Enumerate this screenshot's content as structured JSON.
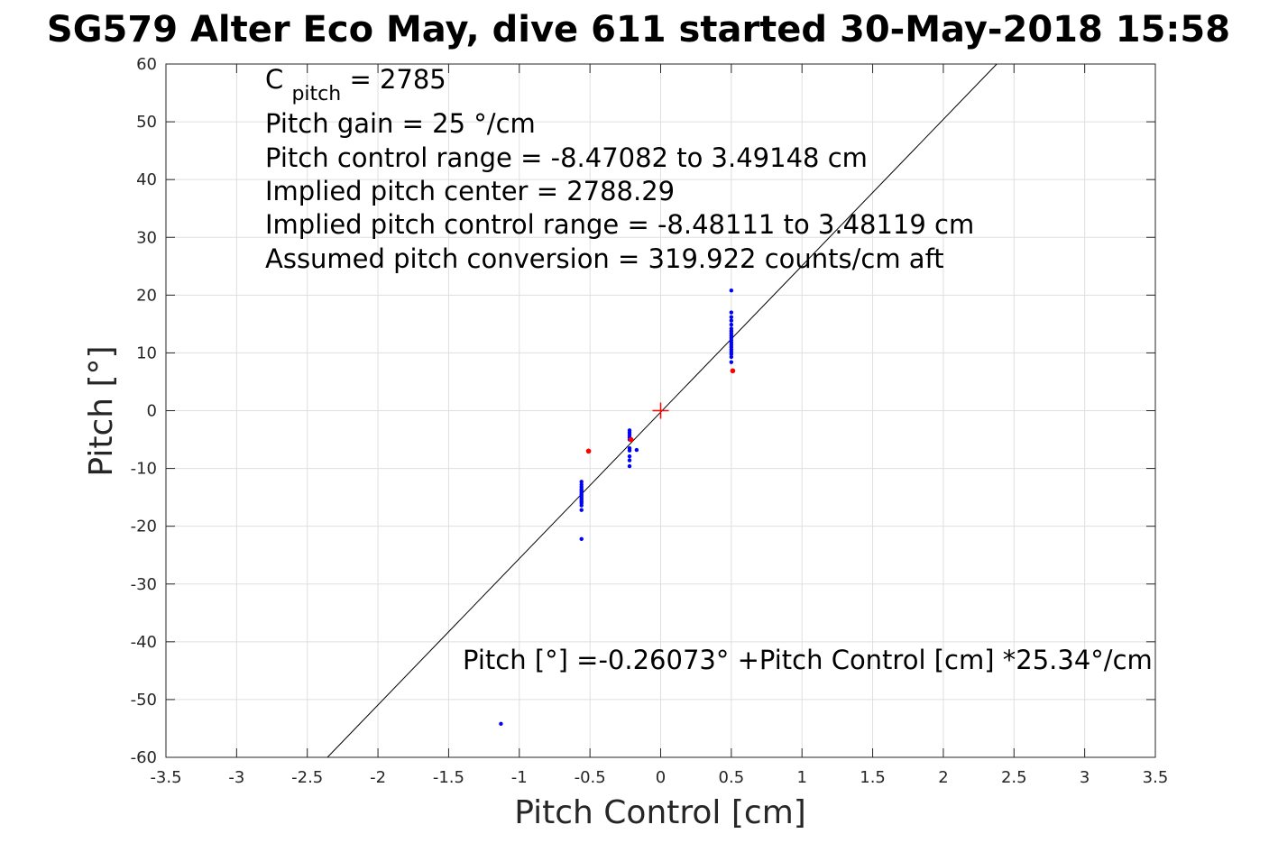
{
  "chart_data": {
    "type": "scatter",
    "title": "SG579 Alter Eco May, dive 611 started 30-May-2018 15:58",
    "xlabel": "Pitch Control [cm]",
    "ylabel": "Pitch [°]",
    "xlim": [
      -3.5,
      3.5
    ],
    "ylim": [
      -60,
      60
    ],
    "xticks": [
      -3.5,
      -3,
      -2.5,
      -2,
      -1.5,
      -1,
      -0.5,
      0,
      0.5,
      1,
      1.5,
      2,
      2.5,
      3,
      3.5
    ],
    "xtick_labels": [
      "-3.5",
      "-3",
      "-2.5",
      "-2",
      "-1.5",
      "-1",
      "-0.5",
      "0",
      "0.5",
      "1",
      "1.5",
      "2",
      "2.5",
      "3",
      "3.5"
    ],
    "yticks": [
      -60,
      -50,
      -40,
      -30,
      -20,
      -10,
      0,
      10,
      20,
      30,
      40,
      50,
      60
    ],
    "ytick_labels": [
      "-60",
      "-50",
      "-40",
      "-30",
      "-20",
      "-10",
      "0",
      "10",
      "20",
      "30",
      "40",
      "50",
      "60"
    ],
    "grid": true,
    "annotations": {
      "c_pitch_symbol": "C",
      "c_pitch_subscript": "pitch",
      "c_pitch_value": " = 2785",
      "lines": [
        "Pitch gain = 25 °/cm",
        "Pitch control range = -8.47082 to 3.49148 cm",
        "Implied pitch center = 2788.29",
        "Implied pitch control range = -8.48111 to 3.48119 cm",
        "Assumed pitch conversion = 319.922 counts/cm aft"
      ],
      "fit_equation": "Pitch [°] =-0.26073° +Pitch Control [cm] *25.34°/cm"
    },
    "fit_line": {
      "intercept": -0.26073,
      "slope": 25.34,
      "color": "#000000"
    },
    "center_marker": {
      "x": 0,
      "y": 0,
      "color": "#ff0000"
    },
    "series": [
      {
        "color": "#0000ff",
        "points": [
          [
            -0.56,
            -12.3
          ],
          [
            -0.56,
            -12.8
          ],
          [
            -0.56,
            -13.2
          ],
          [
            -0.56,
            -13.6
          ],
          [
            -0.56,
            -13.9
          ],
          [
            -0.56,
            -14.2
          ],
          [
            -0.56,
            -14.5
          ],
          [
            -0.56,
            -14.8
          ],
          [
            -0.56,
            -15.1
          ],
          [
            -0.56,
            -15.4
          ],
          [
            -0.56,
            -15.7
          ],
          [
            -0.56,
            -16.0
          ],
          [
            -0.56,
            -16.4
          ],
          [
            -0.56,
            -17.2
          ],
          [
            -0.56,
            -22.2
          ],
          [
            -0.22,
            -3.4
          ],
          [
            -0.22,
            -3.8
          ],
          [
            -0.22,
            -4.2
          ],
          [
            -0.22,
            -4.6
          ],
          [
            -0.22,
            -5.0
          ],
          [
            -0.22,
            -6.5
          ],
          [
            -0.22,
            -6.9
          ],
          [
            -0.22,
            -7.9
          ],
          [
            -0.22,
            -8.6
          ],
          [
            -0.22,
            -9.6
          ],
          [
            -0.17,
            -6.8
          ],
          [
            0.5,
            20.8
          ],
          [
            0.5,
            17.0
          ],
          [
            0.5,
            16.2
          ],
          [
            0.5,
            15.6
          ],
          [
            0.5,
            14.9
          ],
          [
            0.5,
            14.2
          ],
          [
            0.5,
            13.8
          ],
          [
            0.5,
            13.4
          ],
          [
            0.5,
            13.0
          ],
          [
            0.5,
            12.6
          ],
          [
            0.5,
            12.2
          ],
          [
            0.5,
            11.8
          ],
          [
            0.5,
            11.4
          ],
          [
            0.5,
            11.0
          ],
          [
            0.5,
            10.6
          ],
          [
            0.5,
            10.2
          ],
          [
            0.5,
            9.8
          ],
          [
            0.5,
            9.3
          ],
          [
            0.5,
            8.4
          ],
          [
            -1.13,
            -54.2
          ]
        ]
      },
      {
        "color": "#ff0000",
        "points": [
          [
            -0.51,
            -7.0
          ],
          [
            -0.21,
            -5.0
          ],
          [
            0.51,
            6.9
          ]
        ]
      }
    ]
  }
}
